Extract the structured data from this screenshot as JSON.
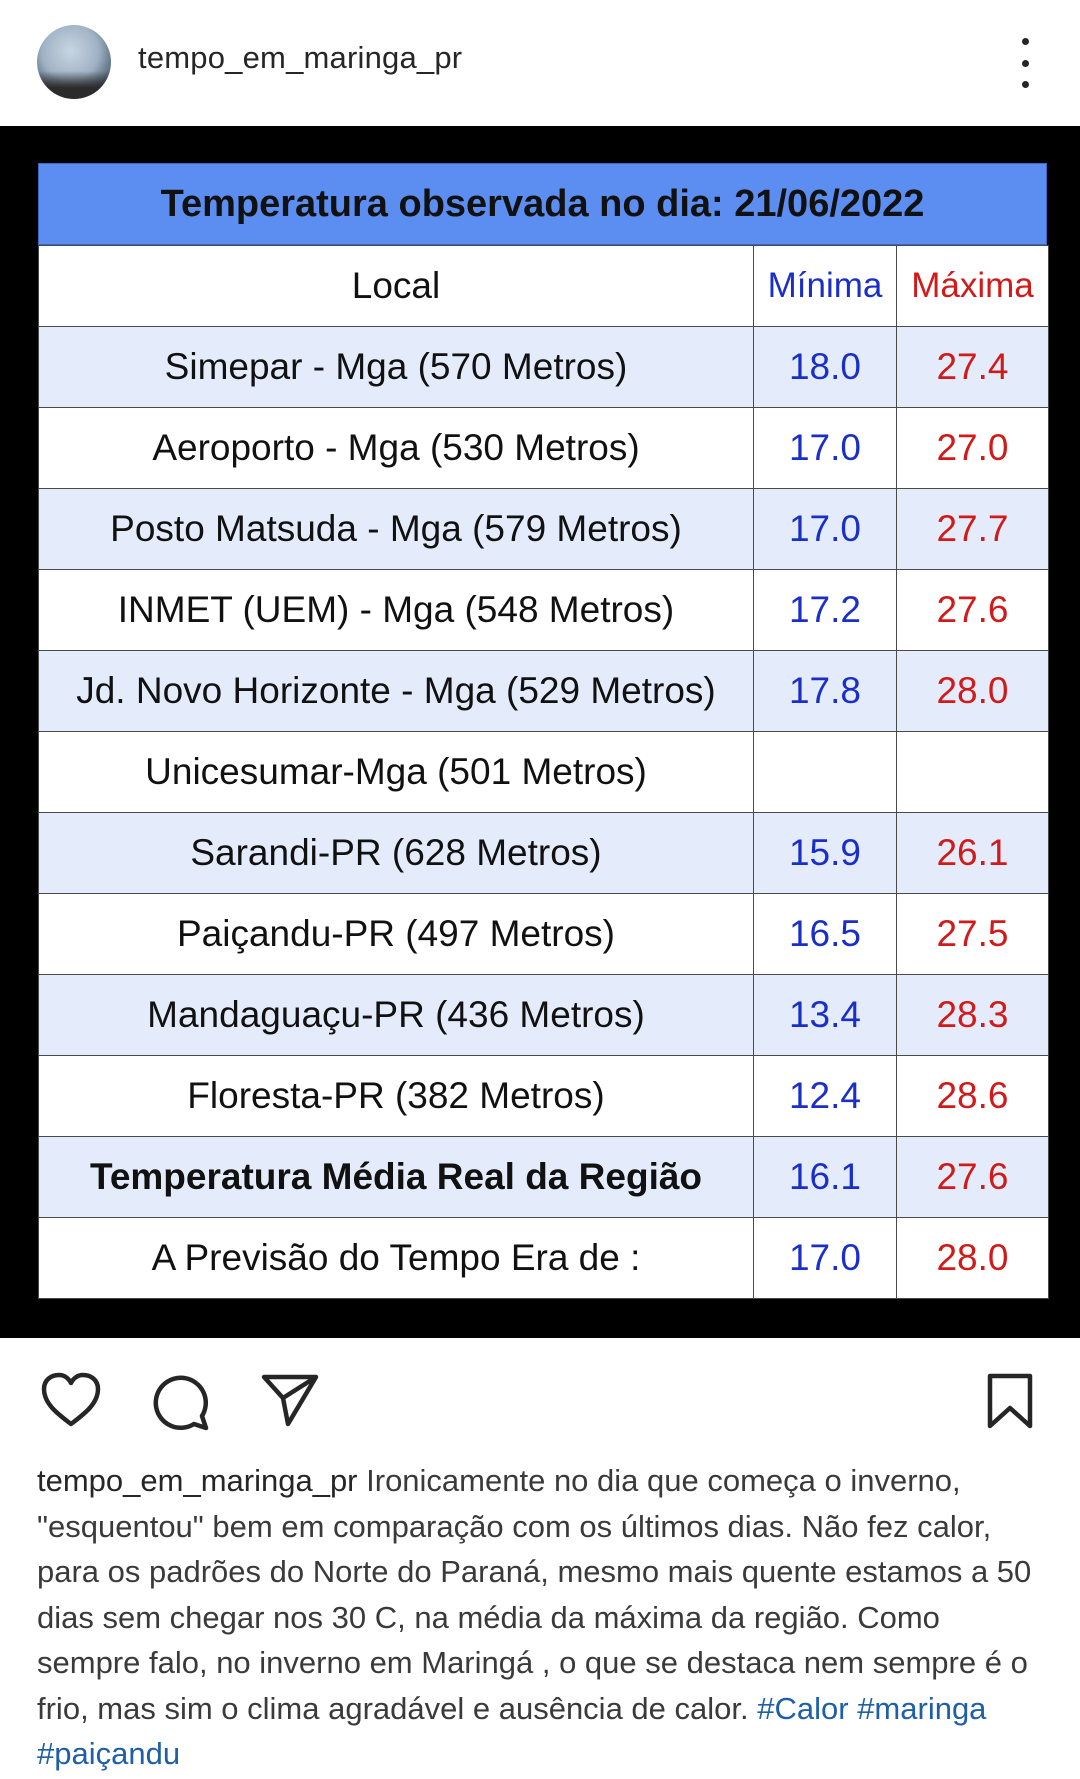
{
  "header": {
    "username": "tempo_em_maringa_pr"
  },
  "table": {
    "title": "Temperatura observada no dia: 21/06/2022",
    "columns": {
      "local": "Local",
      "min": "Mínima",
      "max": "Máxima"
    },
    "rows": [
      {
        "local": "Simepar - Mga  (570 Metros)",
        "min": "18.0",
        "max": "27.4"
      },
      {
        "local": "Aeroporto - Mga (530 Metros)",
        "min": "17.0",
        "max": "27.0"
      },
      {
        "local": "Posto Matsuda - Mga (579 Metros)",
        "min": "17.0",
        "max": "27.7"
      },
      {
        "local": "INMET (UEM) - Mga  (548 Metros)",
        "min": "17.2",
        "max": "27.6"
      },
      {
        "local": "Jd. Novo Horizonte - Mga (529 Metros)",
        "min": "17.8",
        "max": "28.0"
      },
      {
        "local": "Unicesumar-Mga (501 Metros)",
        "min": "",
        "max": ""
      },
      {
        "local": "Sarandi-PR  (628 Metros)",
        "min": "15.9",
        "max": "26.1"
      },
      {
        "local": "Paiçandu-PR (497 Metros)",
        "min": "16.5",
        "max": "27.5"
      },
      {
        "local": "Mandaguaçu-PR (436 Metros)",
        "min": "13.4",
        "max": "28.3"
      },
      {
        "local": "Floresta-PR (382 Metros)",
        "min": "12.4",
        "max": "28.6"
      },
      {
        "local": "Temperatura Média Real da Região",
        "min": "16.1",
        "max": "27.6"
      },
      {
        "local": "A Previsão do Tempo Era de :",
        "min": "17.0",
        "max": "28.0"
      }
    ]
  },
  "actions": {
    "like": "heart-icon",
    "comment": "comment-icon",
    "share": "share-icon",
    "save": "bookmark-icon"
  },
  "caption": {
    "username": "tempo_em_maringa_pr",
    "text": " Ironicamente no dia que começa o inverno, \"esquentou\" bem em comparação com os últimos dias. Não fez calor, para os padrões do Norte do Paraná, mesmo mais quente  estamos a 50 dias sem chegar nos 30 C, na média da máxima da região. Como sempre falo, no inverno em Maringá , o que se destaca nem sempre é o frio, mas sim o clima agradável e ausência de calor. ",
    "hashtags": [
      "#Calor",
      "#maringa",
      "#paiçandu"
    ]
  },
  "colors": {
    "title_bar": "#5b8ef0",
    "row_alt": "#e4ecfb",
    "min_text": "#1a2fc8",
    "max_text": "#d11a1a",
    "hashtag": "#1f5fa8"
  }
}
